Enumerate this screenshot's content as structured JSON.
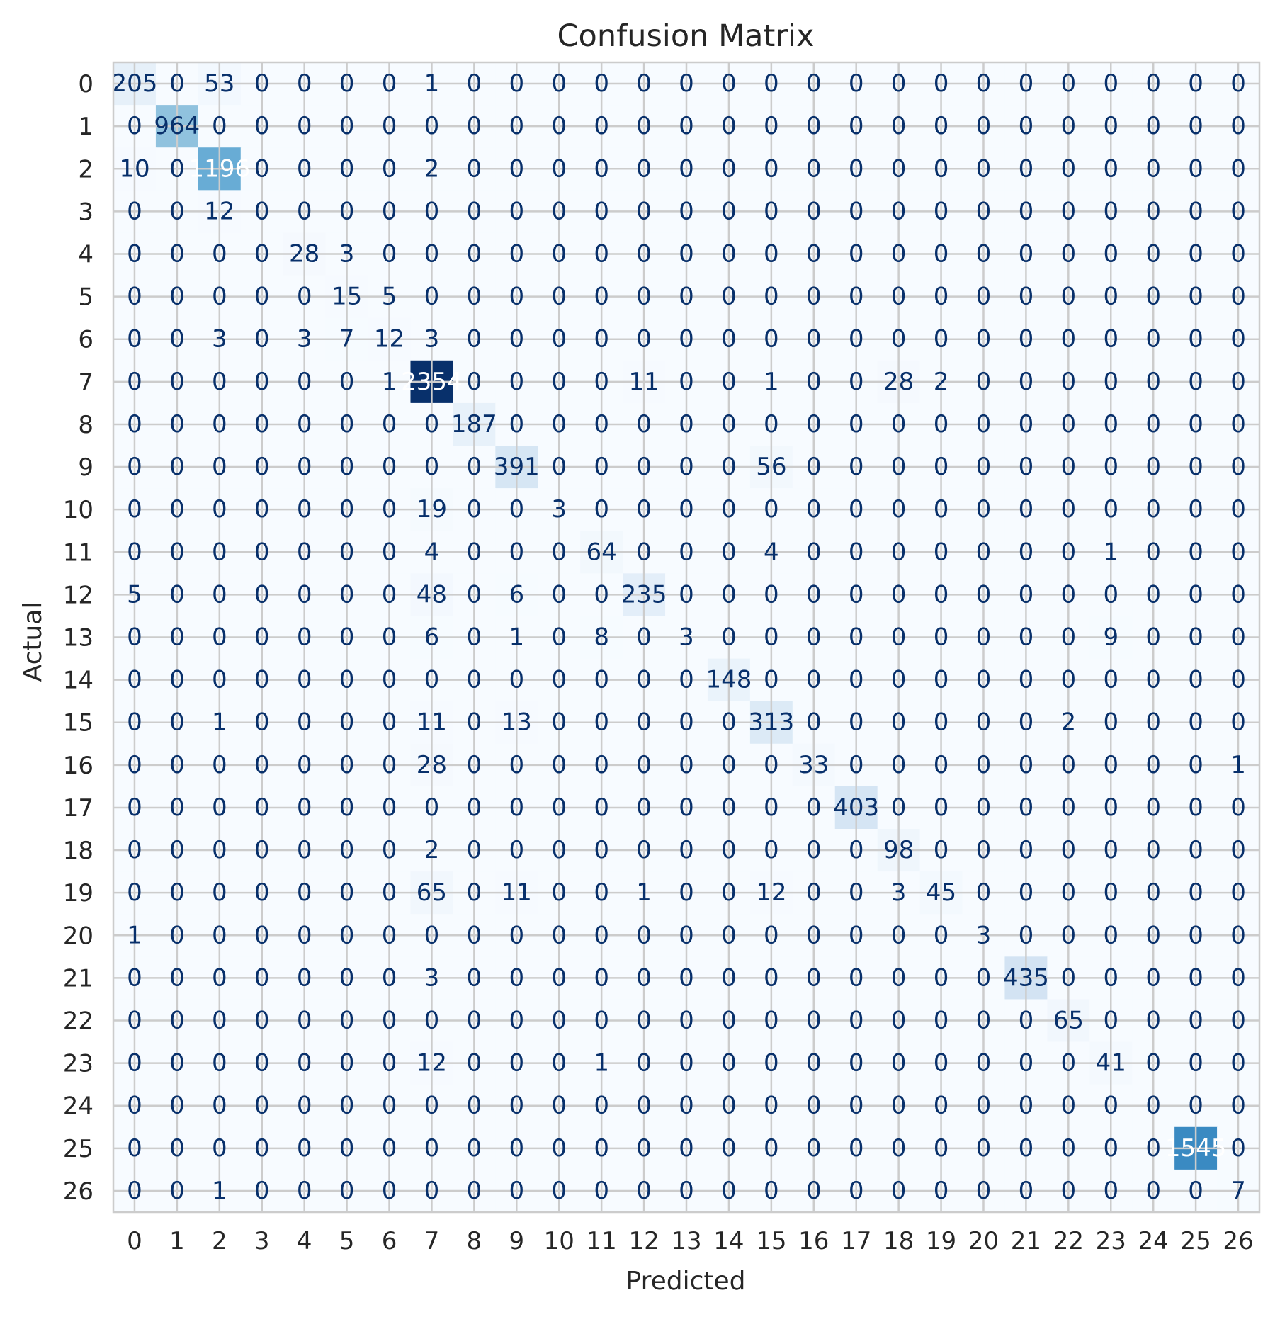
{
  "chart_data": {
    "type": "heatmap",
    "title": "Confusion Matrix",
    "xlabel": "Predicted",
    "ylabel": "Actual",
    "x_ticks": [
      "0",
      "1",
      "2",
      "3",
      "4",
      "5",
      "6",
      "7",
      "8",
      "9",
      "10",
      "11",
      "12",
      "13",
      "14",
      "15",
      "16",
      "17",
      "18",
      "19",
      "20",
      "21",
      "22",
      "23",
      "24",
      "25",
      "26"
    ],
    "y_ticks": [
      "0",
      "1",
      "2",
      "3",
      "4",
      "5",
      "6",
      "7",
      "8",
      "9",
      "10",
      "11",
      "12",
      "13",
      "14",
      "15",
      "16",
      "17",
      "18",
      "19",
      "20",
      "21",
      "22",
      "23",
      "24",
      "25",
      "26"
    ],
    "colormap": "Blues",
    "grid": true,
    "color_range": [
      0,
      2354
    ],
    "values": [
      [
        205,
        0,
        53,
        0,
        0,
        0,
        0,
        1,
        0,
        0,
        0,
        0,
        0,
        0,
        0,
        0,
        0,
        0,
        0,
        0,
        0,
        0,
        0,
        0,
        0,
        0,
        0
      ],
      [
        0,
        964,
        0,
        0,
        0,
        0,
        0,
        0,
        0,
        0,
        0,
        0,
        0,
        0,
        0,
        0,
        0,
        0,
        0,
        0,
        0,
        0,
        0,
        0,
        0,
        0,
        0
      ],
      [
        10,
        0,
        1196,
        0,
        0,
        0,
        0,
        2,
        0,
        0,
        0,
        0,
        0,
        0,
        0,
        0,
        0,
        0,
        0,
        0,
        0,
        0,
        0,
        0,
        0,
        0,
        0
      ],
      [
        0,
        0,
        12,
        0,
        0,
        0,
        0,
        0,
        0,
        0,
        0,
        0,
        0,
        0,
        0,
        0,
        0,
        0,
        0,
        0,
        0,
        0,
        0,
        0,
        0,
        0,
        0
      ],
      [
        0,
        0,
        0,
        0,
        28,
        3,
        0,
        0,
        0,
        0,
        0,
        0,
        0,
        0,
        0,
        0,
        0,
        0,
        0,
        0,
        0,
        0,
        0,
        0,
        0,
        0,
        0
      ],
      [
        0,
        0,
        0,
        0,
        0,
        15,
        5,
        0,
        0,
        0,
        0,
        0,
        0,
        0,
        0,
        0,
        0,
        0,
        0,
        0,
        0,
        0,
        0,
        0,
        0,
        0,
        0
      ],
      [
        0,
        0,
        3,
        0,
        3,
        7,
        12,
        3,
        0,
        0,
        0,
        0,
        0,
        0,
        0,
        0,
        0,
        0,
        0,
        0,
        0,
        0,
        0,
        0,
        0,
        0,
        0
      ],
      [
        0,
        0,
        0,
        0,
        0,
        0,
        1,
        2354,
        0,
        0,
        0,
        0,
        11,
        0,
        0,
        1,
        0,
        0,
        28,
        2,
        0,
        0,
        0,
        0,
        0,
        0,
        0
      ],
      [
        0,
        0,
        0,
        0,
        0,
        0,
        0,
        0,
        187,
        0,
        0,
        0,
        0,
        0,
        0,
        0,
        0,
        0,
        0,
        0,
        0,
        0,
        0,
        0,
        0,
        0,
        0
      ],
      [
        0,
        0,
        0,
        0,
        0,
        0,
        0,
        0,
        0,
        391,
        0,
        0,
        0,
        0,
        0,
        56,
        0,
        0,
        0,
        0,
        0,
        0,
        0,
        0,
        0,
        0,
        0
      ],
      [
        0,
        0,
        0,
        0,
        0,
        0,
        0,
        19,
        0,
        0,
        3,
        0,
        0,
        0,
        0,
        0,
        0,
        0,
        0,
        0,
        0,
        0,
        0,
        0,
        0,
        0,
        0
      ],
      [
        0,
        0,
        0,
        0,
        0,
        0,
        0,
        4,
        0,
        0,
        0,
        64,
        0,
        0,
        0,
        4,
        0,
        0,
        0,
        0,
        0,
        0,
        0,
        1,
        0,
        0,
        0
      ],
      [
        5,
        0,
        0,
        0,
        0,
        0,
        0,
        48,
        0,
        6,
        0,
        0,
        235,
        0,
        0,
        0,
        0,
        0,
        0,
        0,
        0,
        0,
        0,
        0,
        0,
        0,
        0
      ],
      [
        0,
        0,
        0,
        0,
        0,
        0,
        0,
        6,
        0,
        1,
        0,
        8,
        0,
        3,
        0,
        0,
        0,
        0,
        0,
        0,
        0,
        0,
        0,
        9,
        0,
        0,
        0
      ],
      [
        0,
        0,
        0,
        0,
        0,
        0,
        0,
        0,
        0,
        0,
        0,
        0,
        0,
        0,
        148,
        0,
        0,
        0,
        0,
        0,
        0,
        0,
        0,
        0,
        0,
        0,
        0
      ],
      [
        0,
        0,
        1,
        0,
        0,
        0,
        0,
        11,
        0,
        13,
        0,
        0,
        0,
        0,
        0,
        313,
        0,
        0,
        0,
        0,
        0,
        0,
        2,
        0,
        0,
        0,
        0
      ],
      [
        0,
        0,
        0,
        0,
        0,
        0,
        0,
        28,
        0,
        0,
        0,
        0,
        0,
        0,
        0,
        0,
        33,
        0,
        0,
        0,
        0,
        0,
        0,
        0,
        0,
        0,
        1
      ],
      [
        0,
        0,
        0,
        0,
        0,
        0,
        0,
        0,
        0,
        0,
        0,
        0,
        0,
        0,
        0,
        0,
        0,
        403,
        0,
        0,
        0,
        0,
        0,
        0,
        0,
        0,
        0
      ],
      [
        0,
        0,
        0,
        0,
        0,
        0,
        0,
        2,
        0,
        0,
        0,
        0,
        0,
        0,
        0,
        0,
        0,
        0,
        98,
        0,
        0,
        0,
        0,
        0,
        0,
        0,
        0
      ],
      [
        0,
        0,
        0,
        0,
        0,
        0,
        0,
        65,
        0,
        11,
        0,
        0,
        1,
        0,
        0,
        12,
        0,
        0,
        3,
        45,
        0,
        0,
        0,
        0,
        0,
        0,
        0
      ],
      [
        1,
        0,
        0,
        0,
        0,
        0,
        0,
        0,
        0,
        0,
        0,
        0,
        0,
        0,
        0,
        0,
        0,
        0,
        0,
        0,
        3,
        0,
        0,
        0,
        0,
        0,
        0
      ],
      [
        0,
        0,
        0,
        0,
        0,
        0,
        0,
        3,
        0,
        0,
        0,
        0,
        0,
        0,
        0,
        0,
        0,
        0,
        0,
        0,
        0,
        435,
        0,
        0,
        0,
        0,
        0
      ],
      [
        0,
        0,
        0,
        0,
        0,
        0,
        0,
        0,
        0,
        0,
        0,
        0,
        0,
        0,
        0,
        0,
        0,
        0,
        0,
        0,
        0,
        0,
        65,
        0,
        0,
        0,
        0
      ],
      [
        0,
        0,
        0,
        0,
        0,
        0,
        0,
        12,
        0,
        0,
        0,
        1,
        0,
        0,
        0,
        0,
        0,
        0,
        0,
        0,
        0,
        0,
        0,
        41,
        0,
        0,
        0
      ],
      [
        0,
        0,
        0,
        0,
        0,
        0,
        0,
        0,
        0,
        0,
        0,
        0,
        0,
        0,
        0,
        0,
        0,
        0,
        0,
        0,
        0,
        0,
        0,
        0,
        0,
        0,
        0
      ],
      [
        0,
        0,
        0,
        0,
        0,
        0,
        0,
        0,
        0,
        0,
        0,
        0,
        0,
        0,
        0,
        0,
        0,
        0,
        0,
        0,
        0,
        0,
        0,
        0,
        0,
        1545,
        0
      ],
      [
        0,
        0,
        1,
        0,
        0,
        0,
        0,
        0,
        0,
        0,
        0,
        0,
        0,
        0,
        0,
        0,
        0,
        0,
        0,
        0,
        0,
        0,
        0,
        0,
        0,
        0,
        7
      ]
    ]
  }
}
